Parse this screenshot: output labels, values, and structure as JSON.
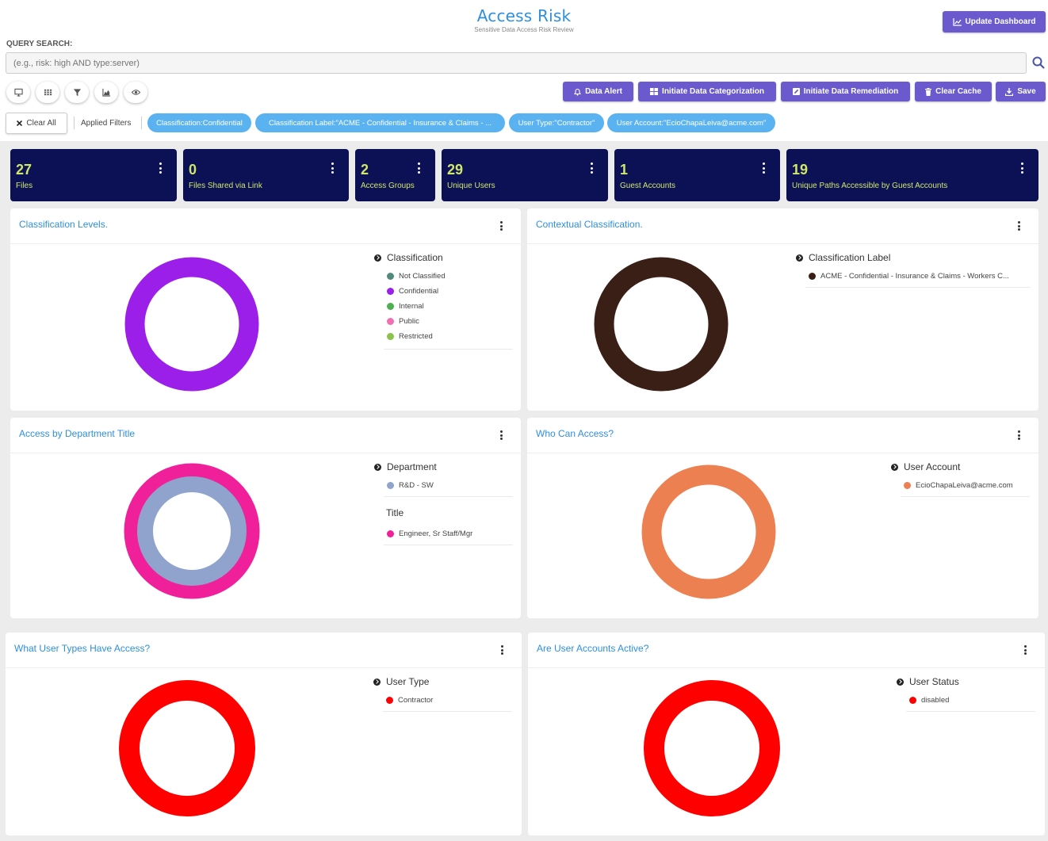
{
  "header": {
    "title": "Access Risk",
    "subtitle": "Sensitive Data Access Risk Review",
    "update_button": "Update Dashboard"
  },
  "query": {
    "label": "QUERY SEARCH:",
    "placeholder": "(e.g., risk: high AND type:server)"
  },
  "view_icons": [
    "monitor-icon",
    "grid-icon",
    "filter-icon",
    "area-chart-icon",
    "eye-icon"
  ],
  "actions": {
    "data_alert": "Data Alert",
    "categorization": "Initiate Data Categorization",
    "remediation": "Initiate Data Remediation",
    "clear_cache": "Clear Cache",
    "save": "Save"
  },
  "filters": {
    "clear_all": "Clear All",
    "applied_label": "Applied Filters",
    "chips": [
      "Classification:Confidential",
      "Classification Label:\"ACME - Confidential - Insurance & Claims - ...",
      "User Type:\"Contractor\"",
      "User Account:\"EcioChapaLeiva@acme.com\""
    ]
  },
  "kpis": [
    {
      "value": "27",
      "label": "Files"
    },
    {
      "value": "0",
      "label": "Files Shared via Link"
    },
    {
      "value": "2",
      "label": "Access Groups"
    },
    {
      "value": "29",
      "label": "Unique Users"
    },
    {
      "value": "1",
      "label": "Guest Accounts"
    },
    {
      "value": "19",
      "label": "Unique Paths Accessible by Guest Accounts"
    }
  ],
  "colors": {
    "accent": "#6a5acd",
    "title_blue": "#2e8fe0",
    "kpi_bg": "#0c1054",
    "kpi_text": "#cfe86a",
    "chip": "#5ab3f0"
  },
  "panels": {
    "classification_levels": {
      "title": "Classification Levels.",
      "legend_title": "Classification",
      "items": [
        {
          "label": "Not Classified",
          "color": "#4f8a7a"
        },
        {
          "label": "Confidential",
          "color": "#9b1fe8"
        },
        {
          "label": "Internal",
          "color": "#4caf50"
        },
        {
          "label": "Public",
          "color": "#f06fb0"
        },
        {
          "label": "Restricted",
          "color": "#8bc34a"
        }
      ]
    },
    "contextual": {
      "title": "Contextual Classification.",
      "legend_title": "Classification Label",
      "items": [
        {
          "label": "ACME - Confidential - Insurance & Claims - Workers C...",
          "color": "#3a1f16"
        }
      ]
    },
    "department": {
      "title": "Access by Department Title",
      "legend_title": "Department",
      "items": [
        {
          "label": "R&D - SW",
          "color": "#8fa3cc"
        }
      ],
      "legend_title_2": "Title",
      "items_2": [
        {
          "label": "Engineer, Sr Staff/Mgr",
          "color": "#f0209a"
        }
      ]
    },
    "who_can_access": {
      "title": "Who Can Access?",
      "legend_title": "User Account",
      "items": [
        {
          "label": "EcioChapaLeiva@acme.com",
          "color": "#ec8050"
        }
      ]
    },
    "user_types": {
      "title": "What User Types Have Access?",
      "legend_title": "User Type",
      "items": [
        {
          "label": "Contractor",
          "color": "#ff0000"
        }
      ]
    },
    "accounts_active": {
      "title": "Are User Accounts Active?",
      "legend_title": "User Status",
      "items": [
        {
          "label": "disabled",
          "color": "#ff0000"
        }
      ]
    }
  }
}
